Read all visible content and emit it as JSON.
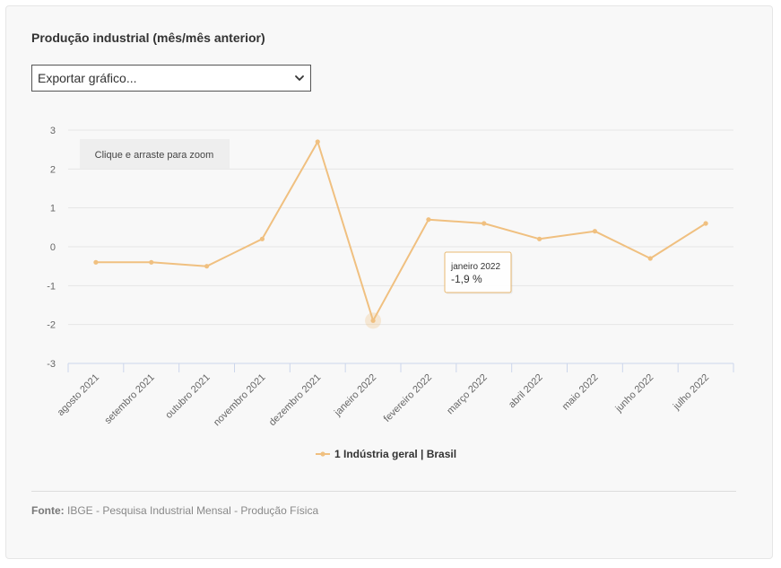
{
  "panel": {
    "title": "Produção industrial (mês/mês anterior)",
    "export_select": {
      "value": "Exportar gráfico..."
    },
    "zoom_hint": "Clique e arraste para zoom",
    "source_label": "Fonte:",
    "source_text": "IBGE - Pesquisa Industrial Mensal - Produção Física"
  },
  "colors": {
    "series": "#f0c080",
    "tooltip_border": "#e8b870",
    "grid": "#e6e6e6",
    "axis": "#ccd6eb"
  },
  "chart_data": {
    "type": "line",
    "categories": [
      "agosto 2021",
      "setembro 2021",
      "outubro 2021",
      "novembro 2021",
      "dezembro 2021",
      "janeiro 2022",
      "fevereiro 2022",
      "março 2022",
      "abril 2022",
      "maio 2022",
      "junho 2022",
      "julho 2022"
    ],
    "series": [
      {
        "name": "1 Indústria geral | Brasil",
        "values": [
          -0.4,
          -0.4,
          -0.5,
          0.2,
          2.7,
          -1.9,
          0.7,
          0.6,
          0.2,
          0.4,
          -0.3,
          0.6
        ]
      }
    ],
    "ylim": [
      -3,
      3
    ],
    "yticks": [
      "3",
      "2",
      "1",
      "0",
      "-1",
      "-2",
      "-3"
    ],
    "grid": true,
    "legend": "bottom-center",
    "tooltip": {
      "category": "janeiro 2022",
      "value_text": "-1,9 %"
    }
  }
}
